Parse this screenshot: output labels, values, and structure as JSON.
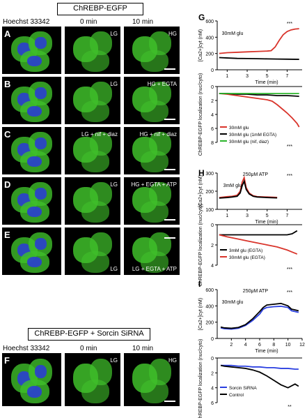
{
  "header_top": "ChREBP-EGFP",
  "header_bottom": "ChREBP-EGFP + Sorcin SiRNA",
  "col_titles": [
    "Hoechst 33342",
    "0 min",
    "10 min"
  ],
  "col_titles_bottom": [
    "Hoechst 33342",
    "0 min",
    "10 min"
  ],
  "micro_rows": [
    {
      "letter": "A",
      "labels": [
        "",
        "LG",
        "HG"
      ]
    },
    {
      "letter": "B",
      "labels": [
        "",
        "LG",
        "HG + EGTA"
      ]
    },
    {
      "letter": "C",
      "labels": [
        "",
        "LG + nif + diaz",
        "HG + nif + diaz"
      ]
    },
    {
      "letter": "D",
      "labels": [
        "",
        "LG",
        "HG + EGTA + ATP"
      ]
    },
    {
      "letter": "E",
      "labels": [
        "",
        "LG",
        "LG + EGTA + ATP"
      ]
    },
    {
      "letter": "F",
      "labels": [
        "",
        "LG",
        "HG"
      ]
    }
  ],
  "colors": {
    "green_cell": "#3fbf2a",
    "blue_nuc": "#2a3fd0",
    "red": "#d9342b",
    "black": "#000000",
    "green_line": "#2bb52b",
    "blue_line": "#2a3fe0"
  },
  "chart_data": [
    {
      "panel": "G",
      "type": "line",
      "ylabel": "[Ca2+]cyt (nM)",
      "ylim": [
        0,
        600
      ],
      "yticks": [
        0,
        200,
        400,
        600
      ],
      "xlabel": "Time (min)",
      "xlim": [
        0,
        8.5
      ],
      "xticks": [
        1,
        3,
        5,
        7
      ],
      "annotations": [
        "30mM glu",
        "***"
      ],
      "series": [
        {
          "color": "red",
          "x": [
            0.2,
            1,
            2,
            3,
            4,
            5,
            5.4,
            5.8,
            6.2,
            6.6,
            7,
            7.4,
            7.8,
            8.2
          ],
          "y": [
            200,
            210,
            215,
            220,
            225,
            230,
            235,
            280,
            360,
            430,
            470,
            490,
            500,
            505
          ]
        },
        {
          "color": "black",
          "x": [
            0.2,
            1,
            2,
            3,
            4,
            5,
            6,
            7,
            8.2
          ],
          "y": [
            150,
            145,
            140,
            138,
            136,
            134,
            132,
            130,
            128
          ]
        }
      ]
    },
    {
      "panel": "G",
      "type": "line",
      "ylabel": "ChREBP-EGFP localization (nuc/cyto)",
      "ylim": [
        0,
        8
      ],
      "yticks": [
        0,
        2,
        4,
        6,
        8
      ],
      "yinverted": true,
      "annotations": [
        "***"
      ],
      "legend": [
        "30mM glu",
        "30mM glu (1mM EGTA)",
        "30mM glu (nif, diaz)"
      ],
      "series": [
        {
          "name": "30mM glu",
          "color": "red",
          "x": [
            0.2,
            1,
            2,
            3,
            4,
            5,
            5.5,
            6,
            6.5,
            7,
            7.5,
            8,
            8.2
          ],
          "y": [
            1.0,
            1.1,
            1.3,
            1.5,
            1.7,
            1.9,
            2.1,
            2.6,
            3.2,
            3.8,
            4.5,
            5.3,
            5.8
          ]
        },
        {
          "name": "30mM glu (1mM EGTA)",
          "color": "black",
          "x": [
            0.2,
            1,
            2,
            3,
            4,
            5,
            6,
            7,
            8.2
          ],
          "y": [
            1.0,
            1.0,
            1.1,
            1.1,
            1.2,
            1.2,
            1.3,
            1.3,
            1.4
          ]
        },
        {
          "name": "30mM glu (nif, diaz)",
          "color": "green_line",
          "x": [
            0.2,
            1,
            2,
            3,
            4,
            5,
            6,
            7,
            8.2
          ],
          "y": [
            1.0,
            1.0,
            1.0,
            1.0,
            1.0,
            1.0,
            1.0,
            1.0,
            1.0
          ]
        }
      ]
    },
    {
      "panel": "H",
      "type": "line",
      "ylabel": "[Ca2+]cyt (nM)",
      "ylim": [
        100,
        300
      ],
      "yticks": [
        100,
        200,
        300
      ],
      "xlabel": "Time (min)",
      "xlim": [
        0,
        8.5
      ],
      "xticks": [
        1,
        3,
        5,
        7
      ],
      "annotations": [
        "3mM glu",
        "250μM ATP",
        "***"
      ],
      "series": [
        {
          "color": "red",
          "x": [
            0.2,
            1,
            1.5,
            2,
            2.3,
            2.5,
            2.7,
            2.9,
            3.2,
            3.6,
            4,
            5,
            6
          ],
          "y": [
            165,
            170,
            172,
            178,
            200,
            250,
            275,
            220,
            190,
            175,
            170,
            168,
            166
          ]
        },
        {
          "color": "black",
          "x": [
            0.2,
            1,
            1.5,
            2,
            2.3,
            2.5,
            2.7,
            2.9,
            3.2,
            3.6,
            4,
            5,
            6
          ],
          "y": [
            162,
            165,
            168,
            172,
            190,
            230,
            255,
            210,
            185,
            172,
            168,
            165,
            163
          ]
        }
      ]
    },
    {
      "panel": "H",
      "type": "line",
      "ylabel": "ChREBP-EGFP localization (nuc/cyto)",
      "ylim": [
        0,
        4
      ],
      "yticks": [
        0,
        2,
        4
      ],
      "yinverted": true,
      "annotations": [
        "***"
      ],
      "legend": [
        "3mM glu (EGTA)",
        "30mM glu (EGTA)"
      ],
      "series": [
        {
          "name": "3mM glu (EGTA)",
          "color": "black",
          "x": [
            0.2,
            1,
            2,
            3,
            4,
            5,
            6,
            7,
            7.5,
            8
          ],
          "y": [
            1.0,
            1.0,
            1.0,
            1.0,
            1.0,
            1.0,
            1.0,
            1.0,
            0.9,
            0.6
          ]
        },
        {
          "name": "30mM glu (EGTA)",
          "color": "red",
          "x": [
            0.2,
            1,
            2,
            3,
            4,
            5,
            6,
            7,
            7.5,
            8
          ],
          "y": [
            1.0,
            1.2,
            1.4,
            1.6,
            1.8,
            2.0,
            2.2,
            2.5,
            2.7,
            2.9
          ]
        }
      ]
    },
    {
      "panel": "I",
      "type": "line",
      "ylabel": "[Ca2+]cyt (nM)",
      "ylim": [
        0,
        600
      ],
      "yticks": [
        0,
        200,
        400,
        600
      ],
      "xlabel": "Time (min)",
      "xlim": [
        0,
        12
      ],
      "xticks": [
        2,
        4,
        6,
        8,
        10,
        12
      ],
      "xticklabels": [
        "2",
        "4",
        "6",
        "8",
        "10",
        "12"
      ],
      "annotations": [
        "30mM glu",
        "250μM ATP",
        "***"
      ],
      "series": [
        {
          "color": "blue_line",
          "x": [
            0.5,
            1,
            2,
            3,
            4,
            5,
            6,
            6.5,
            7,
            8,
            9,
            10,
            10.5,
            11,
            11.5
          ],
          "y": [
            130,
            120,
            115,
            125,
            160,
            220,
            300,
            360,
            380,
            390,
            395,
            380,
            340,
            330,
            320
          ]
        },
        {
          "color": "black",
          "x": [
            0.5,
            1,
            2,
            3,
            4,
            5,
            6,
            6.5,
            7,
            8,
            9,
            10,
            10.5,
            11,
            11.5
          ],
          "y": [
            140,
            130,
            125,
            135,
            170,
            240,
            330,
            380,
            410,
            420,
            430,
            400,
            360,
            350,
            340
          ]
        }
      ]
    },
    {
      "panel": "I",
      "type": "line",
      "ylabel": "ChREBP-EGFP localization (nuc/cyto)",
      "ylim": [
        0,
        6
      ],
      "yticks": [
        0,
        2,
        4,
        6
      ],
      "yinverted": true,
      "annotations": [
        "**"
      ],
      "legend": [
        "Sorcin SiRNA",
        "Control"
      ],
      "series": [
        {
          "name": "Sorcin SiRNA",
          "color": "blue_line",
          "x": [
            0.5,
            1,
            2,
            3,
            4,
            5,
            6,
            7,
            8,
            9,
            10,
            11,
            11.5
          ],
          "y": [
            1.0,
            1.0,
            1.0,
            1.1,
            1.1,
            1.2,
            1.2,
            1.3,
            1.3,
            1.4,
            1.4,
            1.5,
            1.5
          ]
        },
        {
          "name": "Control",
          "color": "black",
          "x": [
            0.5,
            1,
            2,
            3,
            4,
            5,
            6,
            7,
            8,
            9,
            10,
            11,
            11.5
          ],
          "y": [
            1.0,
            1.1,
            1.2,
            1.3,
            1.4,
            1.6,
            1.9,
            2.4,
            3.0,
            3.6,
            4.0,
            3.5,
            3.8
          ]
        }
      ]
    }
  ]
}
